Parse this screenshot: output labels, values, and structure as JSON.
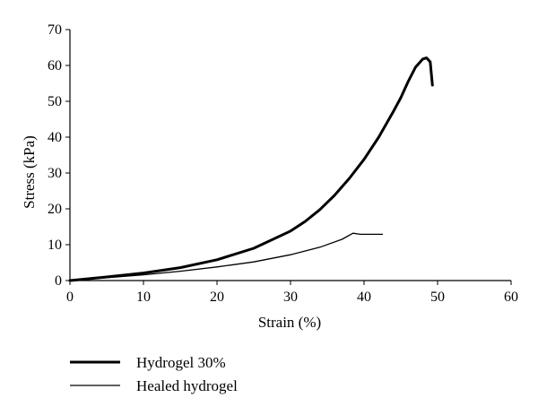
{
  "chart_data": {
    "type": "line",
    "title": "",
    "xlabel": "Strain (%)",
    "ylabel": "Stress (kPa)",
    "xlim": [
      0,
      60
    ],
    "ylim": [
      0,
      70
    ],
    "x_ticks": [
      0,
      10,
      20,
      30,
      40,
      50,
      60
    ],
    "y_ticks": [
      0,
      10,
      20,
      30,
      40,
      50,
      60,
      70
    ],
    "grid": false,
    "legend_position": "bottom-left",
    "series": [
      {
        "name": "Hydrogel 30%",
        "color": "#000000",
        "style": "thick",
        "x": [
          0,
          5,
          10,
          15,
          20,
          25,
          30,
          32,
          34,
          36,
          38,
          40,
          42,
          44,
          45,
          46,
          47,
          48,
          48.5,
          49,
          49.3
        ],
        "y": [
          0,
          1,
          2.1,
          3.6,
          5.8,
          9,
          13.8,
          16.5,
          19.8,
          23.8,
          28.5,
          33.8,
          40,
          47.2,
          51,
          55.5,
          59.5,
          61.8,
          62.1,
          61,
          54.5
        ]
      },
      {
        "name": "Healed hydrogel",
        "color": "#000000",
        "style": "thin",
        "x": [
          0,
          5,
          10,
          15,
          20,
          25,
          30,
          34,
          37,
          38.5,
          39.5,
          41,
          42.5
        ],
        "y": [
          0,
          0.8,
          1.6,
          2.6,
          3.8,
          5.2,
          7.2,
          9.3,
          11.5,
          13.2,
          12.9,
          12.9,
          12.9
        ]
      }
    ]
  }
}
